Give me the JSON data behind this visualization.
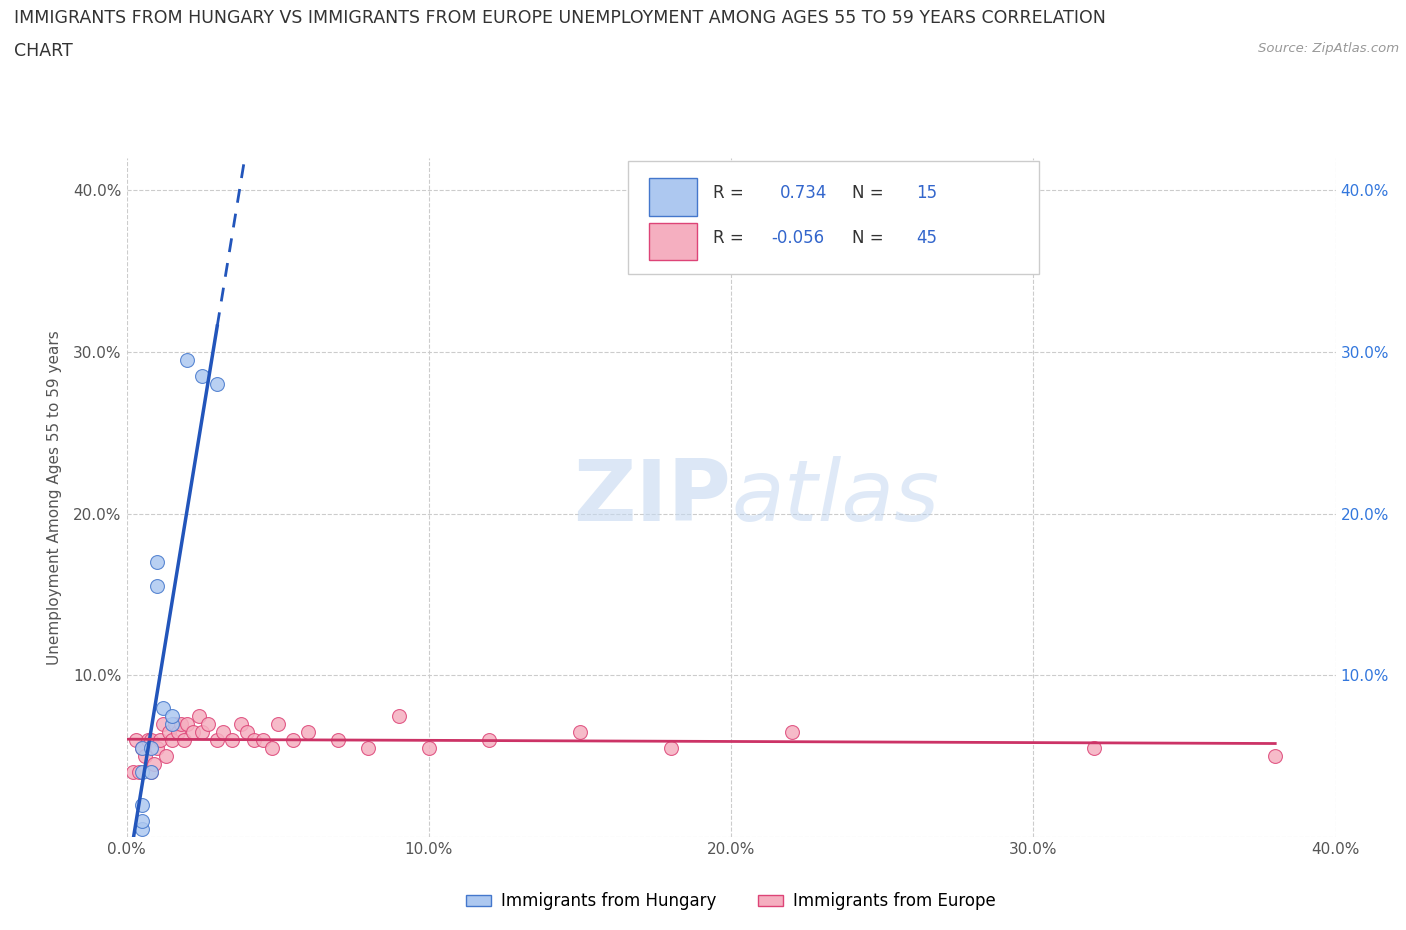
{
  "title_line1": "IMMIGRANTS FROM HUNGARY VS IMMIGRANTS FROM EUROPE UNEMPLOYMENT AMONG AGES 55 TO 59 YEARS CORRELATION",
  "title_line2": "CHART",
  "source_text": "Source: ZipAtlas.com",
  "ylabel": "Unemployment Among Ages 55 to 59 years",
  "xlim": [
    0.0,
    0.4
  ],
  "ylim": [
    0.0,
    0.42
  ],
  "xticks": [
    0.0,
    0.1,
    0.2,
    0.3,
    0.4
  ],
  "yticks": [
    0.0,
    0.1,
    0.2,
    0.3,
    0.4
  ],
  "hungary_R": 0.734,
  "hungary_N": 15,
  "europe_R": -0.056,
  "europe_N": 45,
  "hungary_color": "#adc8f0",
  "europe_color": "#f5afc0",
  "hungary_edge_color": "#4477cc",
  "europe_edge_color": "#dd4477",
  "hungary_line_color": "#2255bb",
  "europe_line_color": "#cc3366",
  "background_color": "#ffffff",
  "grid_color": "#cccccc",
  "watermark_zip": "ZIP",
  "watermark_atlas": "atlas",
  "hungary_x": [
    0.005,
    0.005,
    0.005,
    0.005,
    0.005,
    0.008,
    0.008,
    0.01,
    0.01,
    0.012,
    0.015,
    0.015,
    0.02,
    0.025,
    0.03
  ],
  "hungary_y": [
    0.005,
    0.01,
    0.02,
    0.04,
    0.055,
    0.04,
    0.055,
    0.155,
    0.17,
    0.08,
    0.07,
    0.075,
    0.295,
    0.285,
    0.28
  ],
  "europe_x": [
    0.002,
    0.003,
    0.004,
    0.005,
    0.006,
    0.007,
    0.008,
    0.008,
    0.009,
    0.01,
    0.011,
    0.012,
    0.013,
    0.014,
    0.015,
    0.016,
    0.017,
    0.018,
    0.019,
    0.02,
    0.022,
    0.024,
    0.025,
    0.027,
    0.03,
    0.032,
    0.035,
    0.038,
    0.04,
    0.042,
    0.045,
    0.048,
    0.05,
    0.055,
    0.06,
    0.07,
    0.08,
    0.09,
    0.1,
    0.12,
    0.15,
    0.18,
    0.22,
    0.32,
    0.38
  ],
  "europe_y": [
    0.04,
    0.06,
    0.04,
    0.055,
    0.05,
    0.06,
    0.04,
    0.06,
    0.045,
    0.055,
    0.06,
    0.07,
    0.05,
    0.065,
    0.06,
    0.07,
    0.065,
    0.07,
    0.06,
    0.07,
    0.065,
    0.075,
    0.065,
    0.07,
    0.06,
    0.065,
    0.06,
    0.07,
    0.065,
    0.06,
    0.06,
    0.055,
    0.07,
    0.06,
    0.065,
    0.06,
    0.055,
    0.075,
    0.055,
    0.06,
    0.065,
    0.055,
    0.065,
    0.055,
    0.05
  ]
}
